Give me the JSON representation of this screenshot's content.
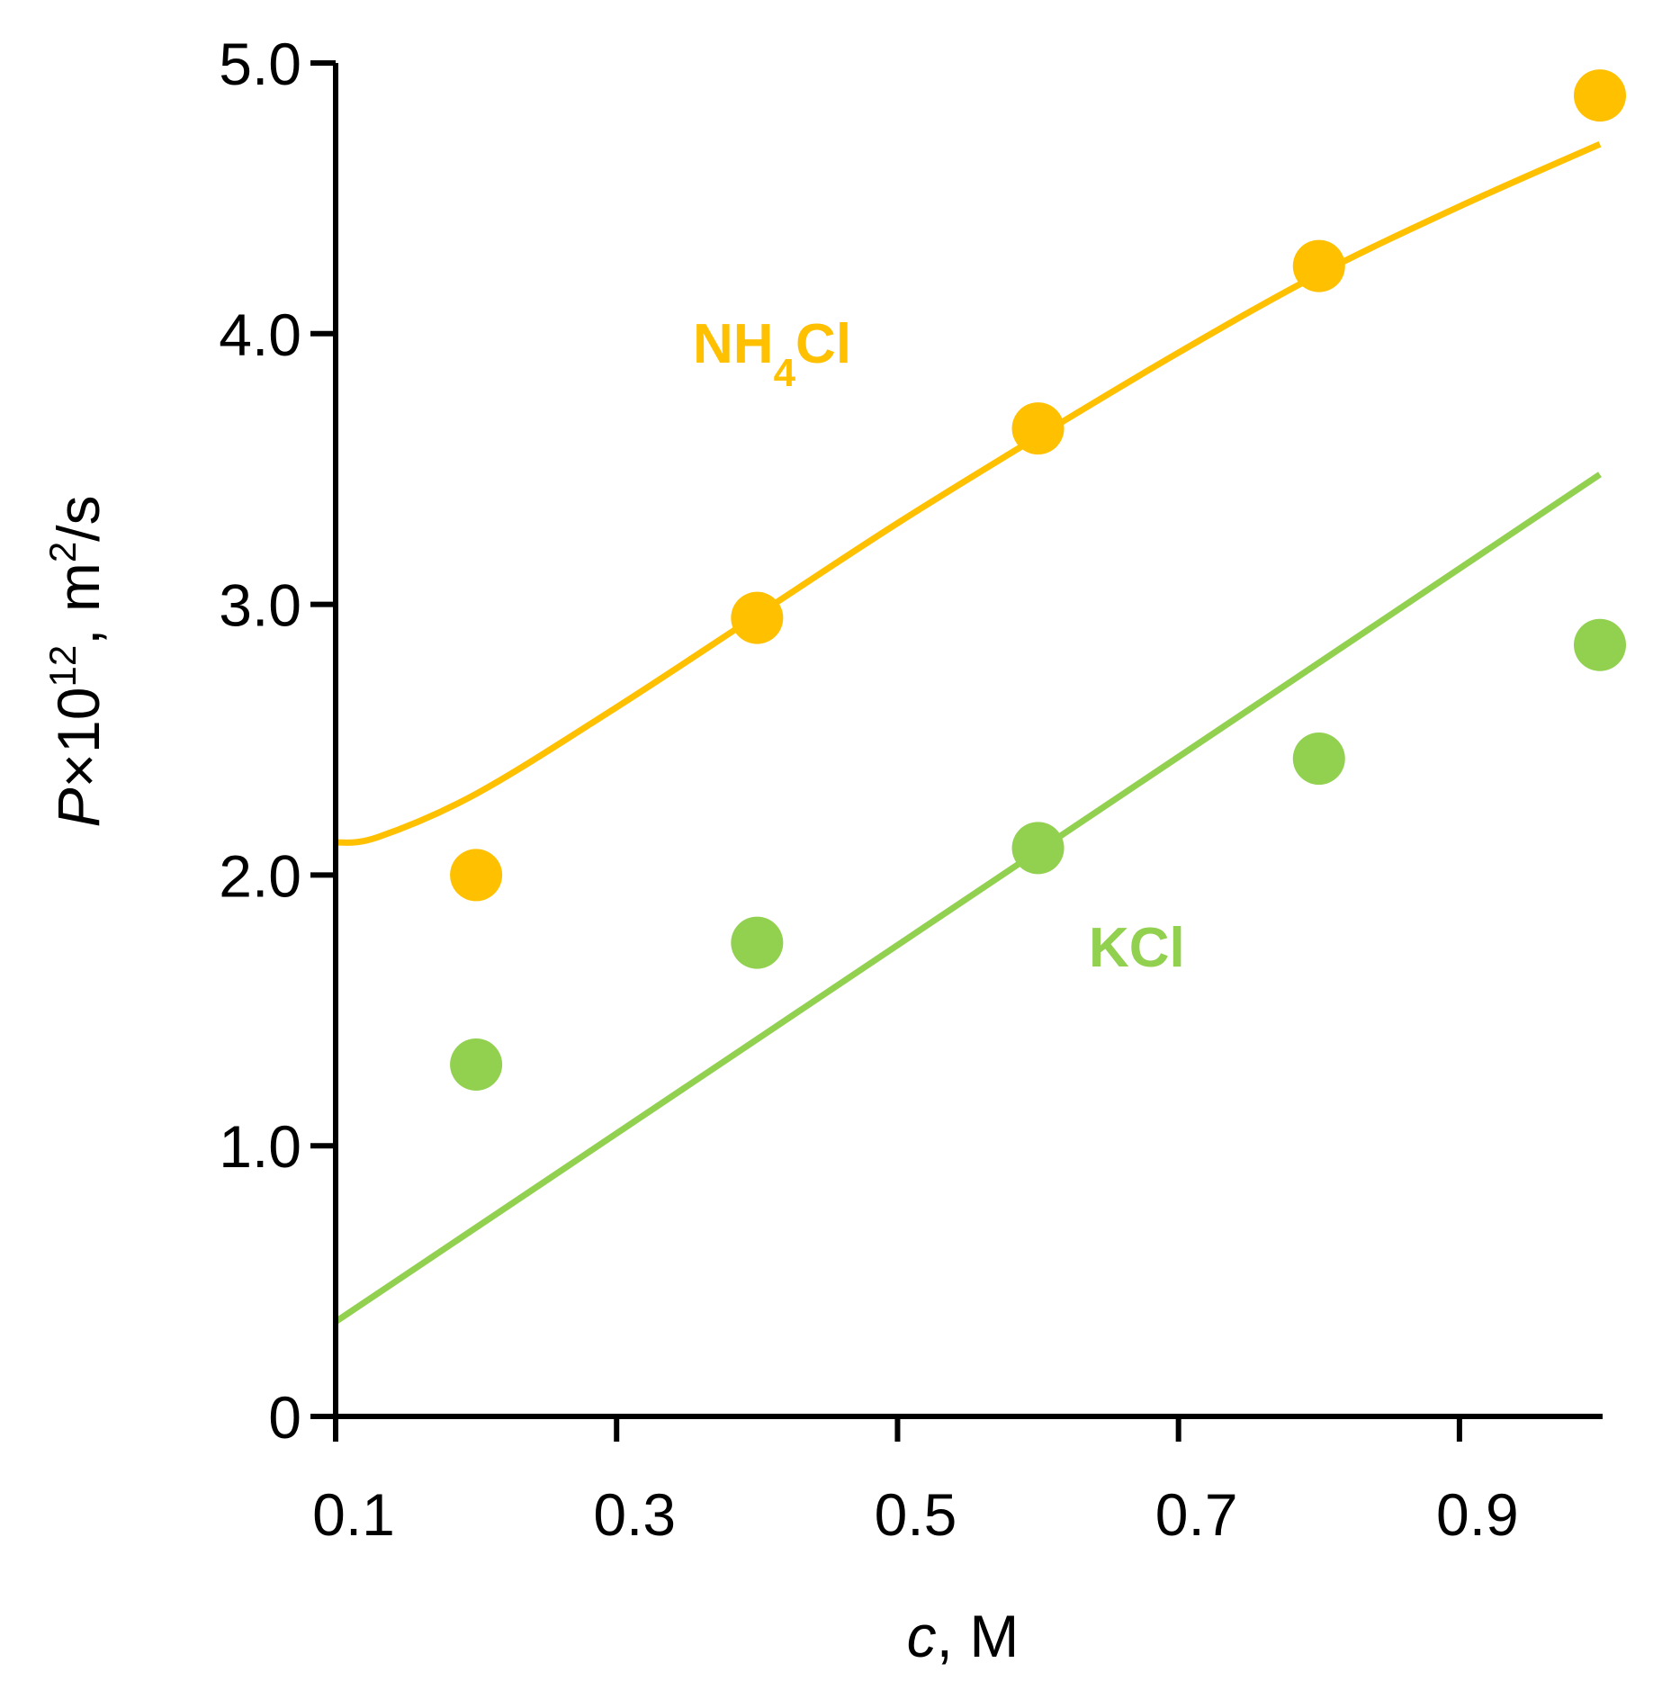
{
  "chart_data": {
    "type": "scatter",
    "xlabel": {
      "italic": "c",
      "rest": ", M"
    },
    "ylabel": {
      "italic": "P",
      "times": "×10",
      "exp": "12",
      "unit_pre": ", m",
      "unit_exp": "2",
      "unit_post": "/s"
    },
    "xlim": [
      0.1,
      1.0
    ],
    "ylim": [
      0,
      5.0
    ],
    "x_ticks": [
      0.1,
      0.3,
      0.5,
      0.7,
      0.9
    ],
    "x_tick_labels": [
      "0.1",
      "0.3",
      "0.5",
      "0.7",
      "0.9"
    ],
    "y_ticks": [
      0,
      1.0,
      2.0,
      3.0,
      4.0,
      5.0
    ],
    "y_tick_labels": [
      "0",
      "1.0",
      "2.0",
      "3.0",
      "4.0",
      "5.0"
    ],
    "grid": false,
    "series": [
      {
        "name": "NH4Cl",
        "label_main": "NH",
        "label_sub": "4",
        "label_tail": "Cl",
        "color": "#FFC000",
        "points": {
          "x": [
            0.2,
            0.4,
            0.6,
            0.8,
            1.0
          ],
          "y": [
            2.0,
            2.95,
            3.65,
            4.25,
            4.88
          ]
        },
        "fit": {
          "x": [
            0.1,
            0.13,
            0.2,
            0.3,
            0.4,
            0.5,
            0.6,
            0.7,
            0.8,
            0.9,
            1.0
          ],
          "y": [
            2.12,
            2.14,
            2.3,
            2.62,
            2.96,
            3.3,
            3.62,
            3.93,
            4.22,
            4.47,
            4.7
          ]
        }
      },
      {
        "name": "KCl",
        "label_main": "KCl",
        "label_sub": "",
        "label_tail": "",
        "color": "#92D050",
        "points": {
          "x": [
            0.2,
            0.4,
            0.6,
            0.8,
            1.0
          ],
          "y": [
            1.3,
            1.75,
            2.1,
            2.43,
            2.85
          ]
        },
        "fit": {
          "x": [
            0.1,
            1.0
          ],
          "y": [
            0.35,
            3.48
          ]
        }
      }
    ]
  }
}
